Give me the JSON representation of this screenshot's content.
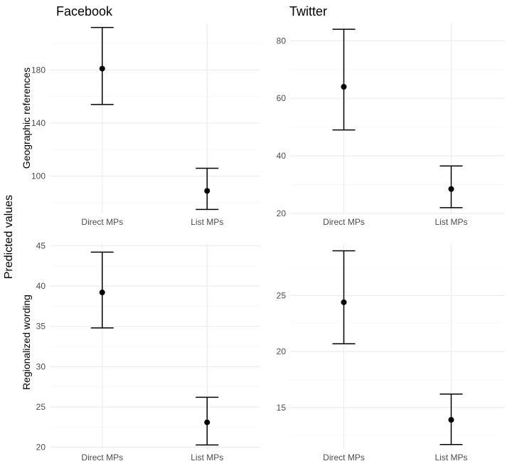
{
  "y_axis_title": "Predicted values",
  "column_titles": [
    "Facebook",
    "Twitter"
  ],
  "row_labels": [
    "Geographic references",
    "Regionalized wording"
  ],
  "chart_data": [
    {
      "type": "errorbar",
      "title": "Facebook",
      "ylabel": "Geographic references",
      "categories": [
        "Direct MPs",
        "List MPs"
      ],
      "values": [
        181,
        89
      ],
      "lower": [
        154,
        75
      ],
      "upper": [
        212,
        106
      ],
      "ylim": [
        72,
        215
      ],
      "yticks": [
        100,
        140,
        180
      ],
      "grid": true
    },
    {
      "type": "errorbar",
      "title": "Twitter",
      "ylabel": "",
      "categories": [
        "Direct MPs",
        "List MPs"
      ],
      "values": [
        64,
        28.5
      ],
      "lower": [
        49,
        22
      ],
      "upper": [
        84,
        36.5
      ],
      "ylim": [
        20,
        86
      ],
      "yticks": [
        20,
        40,
        60,
        80
      ],
      "grid": true
    },
    {
      "type": "errorbar",
      "title": "",
      "ylabel": "Regionalized wording",
      "categories": [
        "Direct MPs",
        "List MPs"
      ],
      "values": [
        39.2,
        23.1
      ],
      "lower": [
        34.8,
        20.3
      ],
      "upper": [
        44.2,
        26.2
      ],
      "ylim": [
        19.8,
        45.2
      ],
      "yticks": [
        20,
        25,
        30,
        35,
        40,
        45
      ],
      "grid": true
    },
    {
      "type": "errorbar",
      "title": "",
      "ylabel": "",
      "categories": [
        "Direct MPs",
        "List MPs"
      ],
      "values": [
        24.4,
        13.9
      ],
      "lower": [
        20.7,
        11.7
      ],
      "upper": [
        29.0,
        16.2
      ],
      "ylim": [
        11.3,
        29.6
      ],
      "yticks": [
        15,
        20,
        25
      ],
      "grid": true
    }
  ]
}
